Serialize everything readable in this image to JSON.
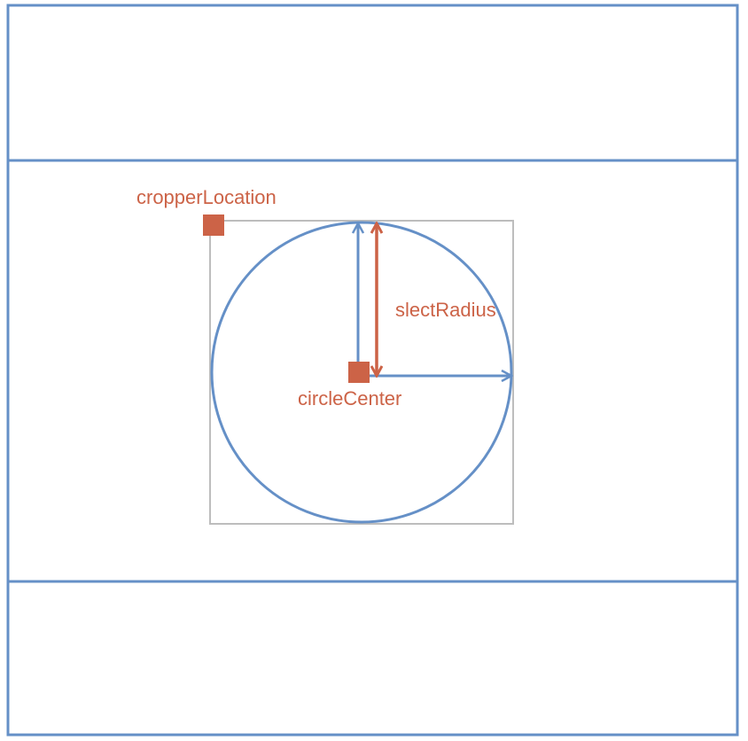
{
  "labels": {
    "cropper_location": "cropperLocation",
    "select_radius": "slectRadius",
    "circle_center": "circleCenter"
  },
  "colors": {
    "frame_blue": "#6590c7",
    "accent_orange": "#cc6347",
    "crop_box_gray": "#bdbdbd",
    "background": "#ffffff"
  },
  "icons": {
    "cropper_location_marker": "square-marker",
    "circle_center_marker": "square-marker",
    "radius_arrow": "double-headed-arrow",
    "axis_arrows": "arrow"
  }
}
